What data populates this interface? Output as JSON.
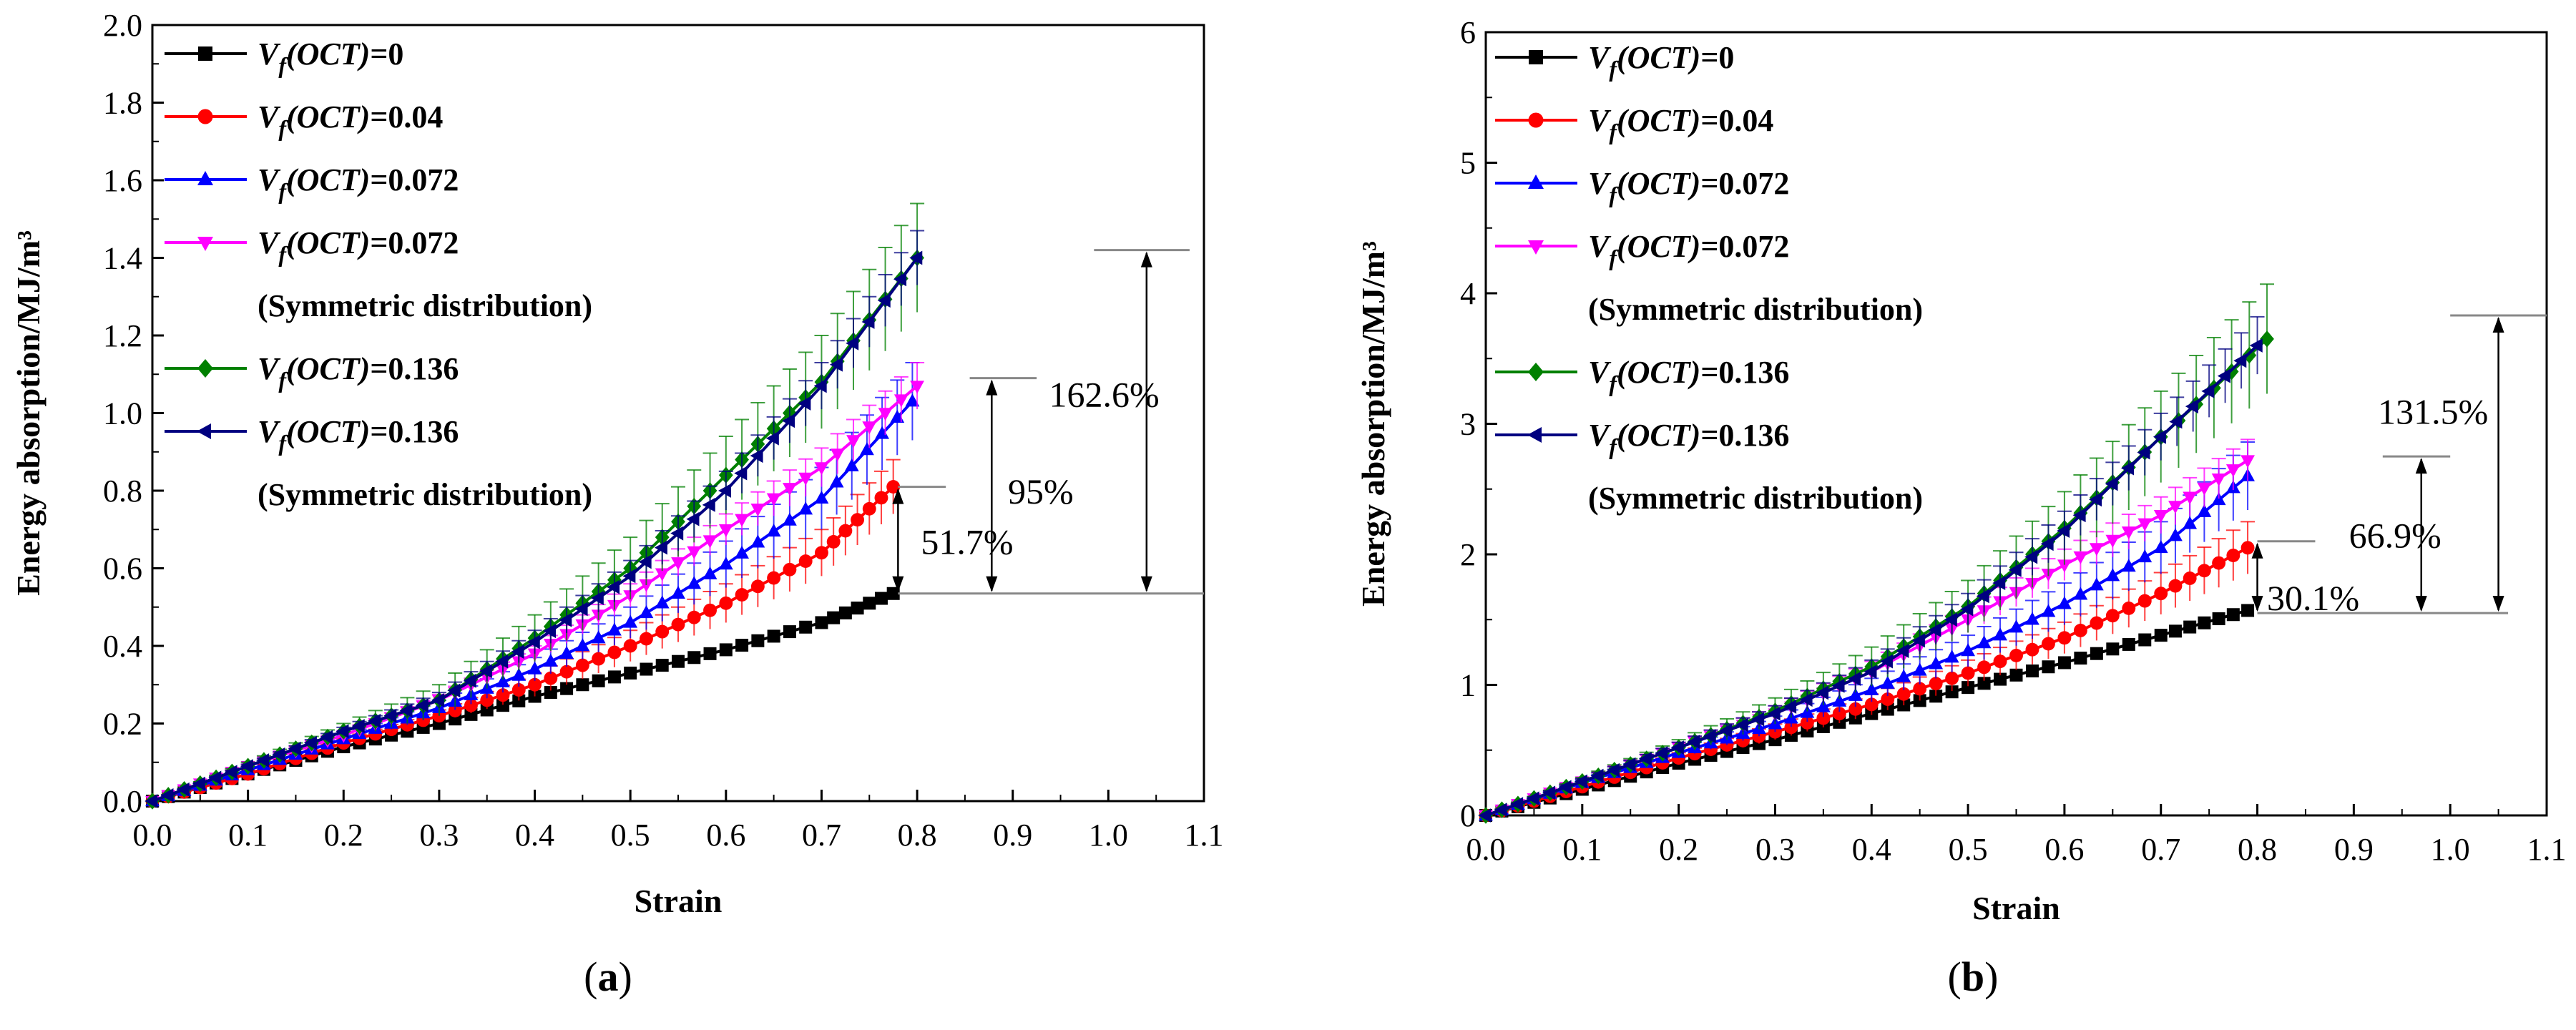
{
  "figure": {
    "colors": {
      "vf0": "#000000",
      "vf004": "#ff0000",
      "vf0072": "#0000ff",
      "vf0072sym": "#ff00ff",
      "vf0136": "#008000",
      "vf0136sym": "#000080"
    }
  },
  "chart_data": [
    {
      "type": "line",
      "panel": "a",
      "caption": "(a)",
      "caption_letter": "a",
      "xlabel": "Strain",
      "ylabel": "Energy absorption/MJ/m³",
      "xlim": [
        0.0,
        1.1
      ],
      "ylim": [
        0.0,
        2.0
      ],
      "xticks": [
        "0.0",
        "0.1",
        "0.2",
        "0.3",
        "0.4",
        "0.5",
        "0.6",
        "0.7",
        "0.8",
        "0.9",
        "1.0",
        "1.1"
      ],
      "yticks": [
        "0.0",
        "0.2",
        "0.4",
        "0.6",
        "0.8",
        "1.0",
        "1.2",
        "1.4",
        "1.6",
        "1.8",
        "2.0"
      ],
      "legend": [
        {
          "var": "V",
          "sub": "f",
          "mid": "(OCT)",
          "value": "=0",
          "note": ""
        },
        {
          "var": "V",
          "sub": "f",
          "mid": "(OCT)",
          "value": "=0.04",
          "note": ""
        },
        {
          "var": "V",
          "sub": "f",
          "mid": "(OCT)",
          "value": "=0.072",
          "note": ""
        },
        {
          "var": "V",
          "sub": "f",
          "mid": "(OCT)",
          "value": "=0.072",
          "note": "(Symmetric distribution)"
        },
        {
          "var": "V",
          "sub": "f",
          "mid": "(OCT)",
          "value": "=0.136",
          "note": ""
        },
        {
          "var": "V",
          "sub": "f",
          "mid": "(OCT)",
          "value": "=0.136",
          "note": "(Symmetric distribution)"
        }
      ],
      "series": [
        {
          "name": "Vf(OCT)=0",
          "color_key": "vf0",
          "marker": "square",
          "x": [
            0.0,
            0.1,
            0.2,
            0.3,
            0.4,
            0.5,
            0.6,
            0.7,
            0.775
          ],
          "y": [
            0.0,
            0.07,
            0.14,
            0.2,
            0.27,
            0.33,
            0.39,
            0.46,
            0.535
          ],
          "err": [
            0,
            0,
            0,
            0,
            0,
            0,
            0,
            0,
            0
          ]
        },
        {
          "name": "Vf(OCT)=0.04",
          "color_key": "vf004",
          "marker": "circle",
          "x": [
            0.0,
            0.1,
            0.2,
            0.3,
            0.4,
            0.5,
            0.6,
            0.7,
            0.775
          ],
          "y": [
            0.0,
            0.07,
            0.15,
            0.22,
            0.3,
            0.4,
            0.51,
            0.64,
            0.81
          ],
          "err": [
            0,
            0.005,
            0.01,
            0.015,
            0.03,
            0.04,
            0.05,
            0.06,
            0.07
          ]
        },
        {
          "name": "Vf(OCT)=0.072",
          "color_key": "vf0072",
          "marker": "triangle-up",
          "x": [
            0.0,
            0.1,
            0.2,
            0.3,
            0.4,
            0.5,
            0.6,
            0.7,
            0.795
          ],
          "y": [
            0.0,
            0.08,
            0.16,
            0.24,
            0.34,
            0.46,
            0.61,
            0.78,
            1.03
          ],
          "err": [
            0,
            0.005,
            0.01,
            0.02,
            0.03,
            0.04,
            0.06,
            0.08,
            0.1
          ]
        },
        {
          "name": "Vf(OCT)=0.072 (Symmetric distribution)",
          "color_key": "vf0072sym",
          "marker": "triangle-down",
          "x": [
            0.0,
            0.1,
            0.2,
            0.3,
            0.4,
            0.5,
            0.6,
            0.7,
            0.8
          ],
          "y": [
            0.0,
            0.09,
            0.17,
            0.26,
            0.38,
            0.53,
            0.7,
            0.86,
            1.07
          ],
          "err": [
            0,
            0.005,
            0.01,
            0.015,
            0.02,
            0.03,
            0.04,
            0.05,
            0.06
          ]
        },
        {
          "name": "Vf(OCT)=0.136",
          "color_key": "vf0136",
          "marker": "diamond",
          "x": [
            0.0,
            0.1,
            0.2,
            0.3,
            0.4,
            0.5,
            0.6,
            0.7,
            0.8
          ],
          "y": [
            0.0,
            0.09,
            0.18,
            0.26,
            0.42,
            0.6,
            0.84,
            1.08,
            1.4
          ],
          "err": [
            0,
            0.01,
            0.02,
            0.04,
            0.06,
            0.08,
            0.1,
            0.12,
            0.14
          ]
        },
        {
          "name": "Vf(OCT)=0.136 (Symmetric distribution)",
          "color_key": "vf0136sym",
          "marker": "triangle-left",
          "x": [
            0.0,
            0.1,
            0.2,
            0.3,
            0.4,
            0.5,
            0.6,
            0.7,
            0.8
          ],
          "y": [
            0.0,
            0.09,
            0.18,
            0.26,
            0.41,
            0.58,
            0.8,
            1.07,
            1.4
          ],
          "err": [
            0,
            0.005,
            0.01,
            0.02,
            0.03,
            0.04,
            0.05,
            0.06,
            0.07
          ]
        }
      ],
      "reference_line": {
        "x_from": 0.78,
        "x_to": 1.1,
        "y": 0.535
      },
      "annotations": [
        {
          "label": "51.7%",
          "x": 0.78,
          "y_top": 0.81,
          "label_x": 0.804,
          "label_y": 0.67,
          "ref_x_from": 0.78,
          "ref_x_to": 0.83
        },
        {
          "label": "95%",
          "x": 0.878,
          "y_top": 1.09,
          "label_x": 0.895,
          "label_y": 0.8,
          "ref_x_from": 0.855,
          "ref_x_to": 0.925
        },
        {
          "label": "162.6%",
          "x": 1.04,
          "y_top": 1.42,
          "label_x": 0.938,
          "label_y": 1.05,
          "ref_x_from": 0.985,
          "ref_x_to": 1.085
        }
      ]
    },
    {
      "type": "line",
      "panel": "b",
      "caption": "(b)",
      "caption_letter": "b",
      "xlabel": "Strain",
      "ylabel": "Energy absorption/MJ/m³",
      "xlim": [
        0.0,
        1.1
      ],
      "ylim": [
        0,
        6
      ],
      "xticks": [
        "0.0",
        "0.1",
        "0.2",
        "0.3",
        "0.4",
        "0.5",
        "0.6",
        "0.7",
        "0.8",
        "0.9",
        "1.0",
        "1.1"
      ],
      "yticks": [
        "0",
        "1",
        "2",
        "3",
        "4",
        "5",
        "6"
      ],
      "legend": [
        {
          "var": "V",
          "sub": "f",
          "mid": "(OCT)",
          "value": "=0",
          "note": ""
        },
        {
          "var": "V",
          "sub": "f",
          "mid": "(OCT)",
          "value": "=0.04",
          "note": ""
        },
        {
          "var": "V",
          "sub": "f",
          "mid": "(OCT)",
          "value": "=0.072",
          "note": ""
        },
        {
          "var": "V",
          "sub": "f",
          "mid": "(OCT)",
          "value": "=0.072",
          "note": "(Symmetric distribution)"
        },
        {
          "var": "V",
          "sub": "f",
          "mid": "(OCT)",
          "value": "=0.136",
          "note": ""
        },
        {
          "var": "V",
          "sub": "f",
          "mid": "(OCT)",
          "value": "=0.136",
          "note": "(Symmetric distribution)"
        }
      ],
      "series": [
        {
          "name": "Vf(OCT)=0",
          "color_key": "vf0",
          "marker": "square",
          "x": [
            0.0,
            0.1,
            0.2,
            0.3,
            0.4,
            0.5,
            0.6,
            0.7,
            0.79
          ],
          "y": [
            0.0,
            0.2,
            0.4,
            0.58,
            0.78,
            0.98,
            1.17,
            1.38,
            1.57
          ],
          "err": [
            0,
            0,
            0,
            0,
            0,
            0,
            0,
            0,
            0
          ]
        },
        {
          "name": "Vf(OCT)=0.04",
          "color_key": "vf004",
          "marker": "circle",
          "x": [
            0.0,
            0.1,
            0.2,
            0.3,
            0.4,
            0.5,
            0.6,
            0.7,
            0.79
          ],
          "y": [
            0.0,
            0.22,
            0.44,
            0.64,
            0.85,
            1.09,
            1.36,
            1.7,
            2.05
          ],
          "err": [
            0,
            0.02,
            0.04,
            0.06,
            0.08,
            0.1,
            0.12,
            0.16,
            0.2
          ]
        },
        {
          "name": "Vf(OCT)=0.072",
          "color_key": "vf0072",
          "marker": "triangle-up",
          "x": [
            0.0,
            0.1,
            0.2,
            0.3,
            0.4,
            0.5,
            0.6,
            0.7,
            0.79
          ],
          "y": [
            0.0,
            0.25,
            0.48,
            0.7,
            0.96,
            1.26,
            1.62,
            2.05,
            2.6
          ],
          "err": [
            0,
            0.02,
            0.04,
            0.06,
            0.09,
            0.12,
            0.16,
            0.2,
            0.26
          ]
        },
        {
          "name": "Vf(OCT)=0.072 (Symmetric distribution)",
          "color_key": "vf0072sym",
          "marker": "triangle-down",
          "x": [
            0.0,
            0.1,
            0.2,
            0.3,
            0.4,
            0.5,
            0.6,
            0.7,
            0.79
          ],
          "y": [
            0.0,
            0.26,
            0.52,
            0.78,
            1.1,
            1.5,
            1.92,
            2.3,
            2.72
          ],
          "err": [
            0,
            0.02,
            0.04,
            0.06,
            0.08,
            0.1,
            0.12,
            0.14,
            0.16
          ]
        },
        {
          "name": "Vf(OCT)=0.136",
          "color_key": "vf0136",
          "marker": "diamond",
          "x": [
            0.0,
            0.1,
            0.2,
            0.3,
            0.4,
            0.5,
            0.6,
            0.7,
            0.81
          ],
          "y": [
            0.0,
            0.26,
            0.52,
            0.8,
            1.14,
            1.6,
            2.2,
            2.9,
            3.65
          ],
          "err": [
            0,
            0.03,
            0.06,
            0.1,
            0.15,
            0.2,
            0.28,
            0.35,
            0.42
          ]
        },
        {
          "name": "Vf(OCT)=0.136 (Symmetric distribution)",
          "color_key": "vf0136sym",
          "marker": "triangle-left",
          "x": [
            0.0,
            0.1,
            0.2,
            0.3,
            0.4,
            0.5,
            0.6,
            0.7,
            0.8
          ],
          "y": [
            0.0,
            0.26,
            0.52,
            0.78,
            1.1,
            1.58,
            2.18,
            2.9,
            3.6
          ],
          "err": [
            0,
            0.02,
            0.04,
            0.06,
            0.09,
            0.12,
            0.15,
            0.18,
            0.22
          ]
        }
      ],
      "reference_line": {
        "x_from": 0.8,
        "x_to": 1.06,
        "y": 1.55
      },
      "annotations": [
        {
          "label": "30.1%",
          "x": 0.8,
          "y_top": 2.1,
          "label_x": 0.81,
          "label_y": 1.67,
          "ref_x_from": 0.8,
          "ref_x_to": 0.86
        },
        {
          "label": "66.9%",
          "x": 0.97,
          "y_top": 2.75,
          "label_x": 0.895,
          "label_y": 2.15,
          "ref_x_from": 0.93,
          "ref_x_to": 1.0
        },
        {
          "label": "131.5%",
          "x": 1.05,
          "y_top": 3.83,
          "label_x": 0.925,
          "label_y": 3.1,
          "ref_x_from": 1.0,
          "ref_x_to": 1.1
        }
      ]
    }
  ]
}
